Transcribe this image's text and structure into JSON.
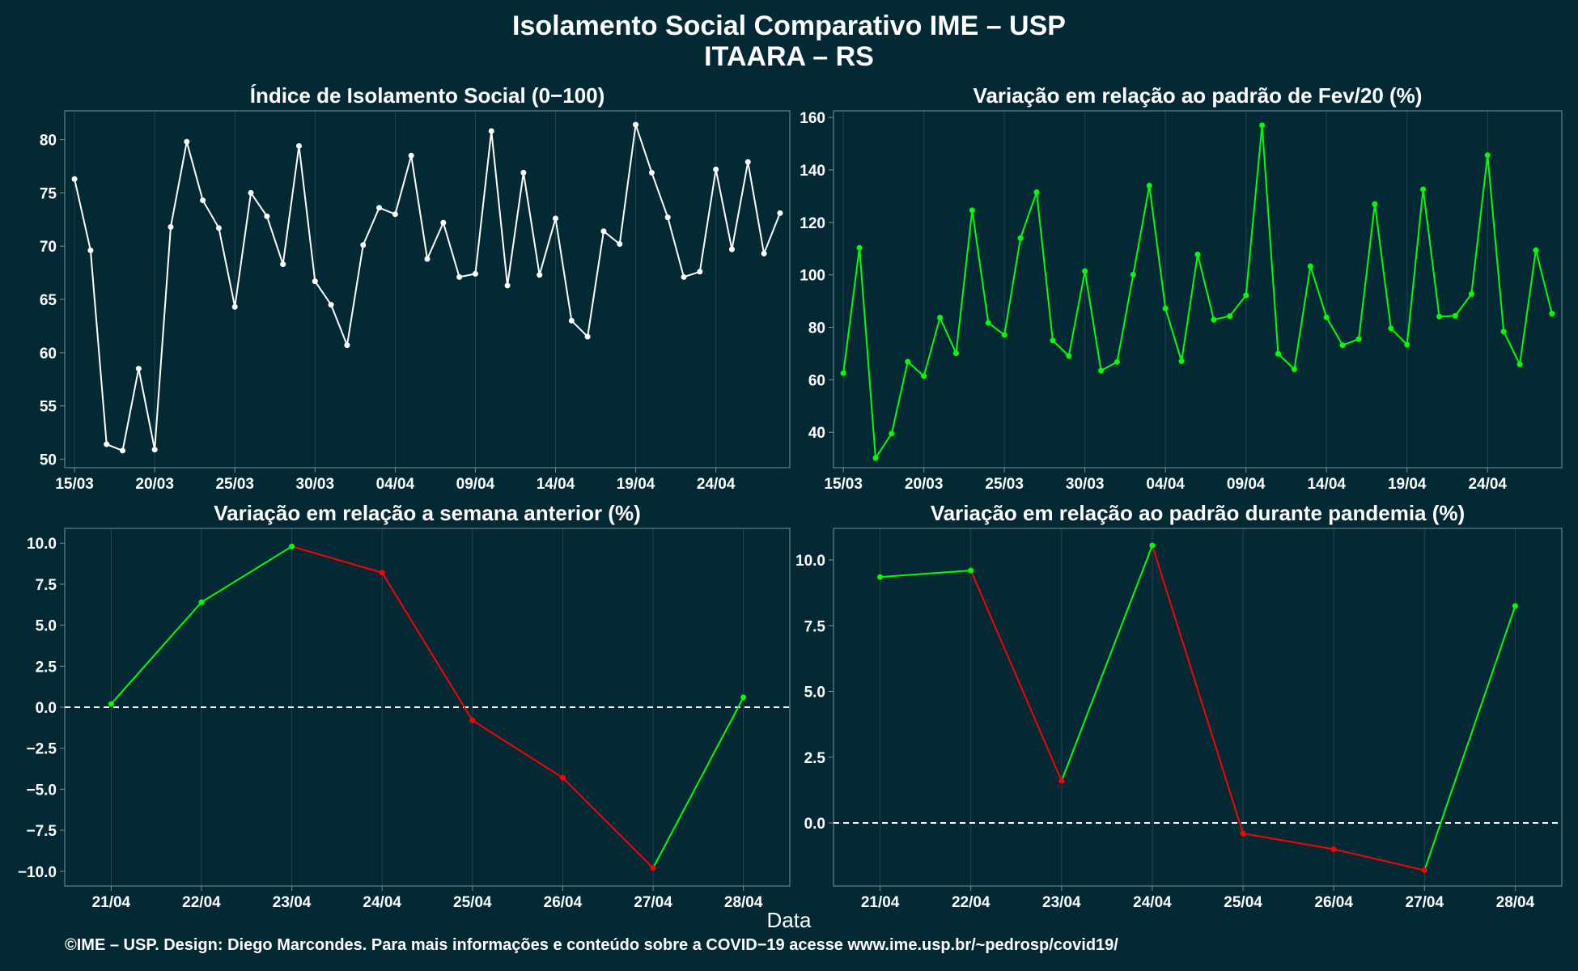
{
  "title": "Isolamento Social Comparativo IME – USP",
  "subtitle": "ITAARA – RS",
  "x_label": "Data",
  "footer": "©IME – USP. Design: Diego Marcondes. Para mais informações e conteúdo sobre a COVID−19 acesse www.ime.usp.br/~pedrosp/covid19/",
  "colors": {
    "background": "#032935",
    "white": "#ffffff",
    "green": "#00ff00",
    "red": "#ff0000",
    "grid": "#1f4752",
    "frame": "#7d8e94"
  },
  "chart_data": [
    {
      "type": "line",
      "title": "Índice de Isolamento Social (0−100)",
      "x": [
        "15/03",
        "16/03",
        "17/03",
        "18/03",
        "19/03",
        "20/03",
        "21/03",
        "22/03",
        "23/03",
        "24/03",
        "25/03",
        "26/03",
        "27/03",
        "28/03",
        "29/03",
        "30/03",
        "31/03",
        "01/04",
        "02/04",
        "03/04",
        "04/04",
        "05/04",
        "06/04",
        "07/04",
        "08/04",
        "09/04",
        "10/04",
        "11/04",
        "12/04",
        "13/04",
        "14/04",
        "15/04",
        "16/04",
        "17/04",
        "18/04",
        "19/04",
        "20/04",
        "21/04",
        "22/04",
        "23/04",
        "24/04",
        "25/04",
        "26/04",
        "27/04",
        "28/04"
      ],
      "x_ticks": [
        "15/03",
        "20/03",
        "25/03",
        "30/03",
        "04/04",
        "09/04",
        "14/04",
        "19/04",
        "24/04"
      ],
      "series": [
        {
          "values": [
            76.3,
            69.6,
            51.4,
            50.8,
            58.5,
            50.9,
            71.8,
            79.8,
            74.3,
            71.7,
            64.3,
            75.0,
            72.8,
            68.3,
            79.4,
            66.7,
            64.5,
            60.7,
            70.1,
            73.6,
            73.0,
            78.5,
            68.8,
            72.2,
            67.1,
            67.4,
            80.8,
            66.3,
            76.9,
            67.3,
            72.6,
            63.0,
            61.5,
            71.4,
            70.2,
            81.4,
            76.9,
            72.7,
            67.1,
            67.6,
            77.2,
            69.7,
            77.9,
            69.3,
            73.1
          ]
        }
      ],
      "ylim": [
        49.2,
        82.7
      ],
      "y_ticks": [
        50,
        55,
        60,
        65,
        70,
        75,
        80
      ],
      "line_color": "#ffffff"
    },
    {
      "type": "line",
      "title": "Variação em relação ao padrão de Fev/20 (%)",
      "x": [
        "15/03",
        "16/03",
        "17/03",
        "18/03",
        "19/03",
        "20/03",
        "21/03",
        "22/03",
        "23/03",
        "24/03",
        "25/03",
        "26/03",
        "27/03",
        "28/03",
        "29/03",
        "30/03",
        "31/03",
        "01/04",
        "02/04",
        "03/04",
        "04/04",
        "05/04",
        "06/04",
        "07/04",
        "08/04",
        "09/04",
        "10/04",
        "11/04",
        "12/04",
        "13/04",
        "14/04",
        "15/04",
        "16/04",
        "17/04",
        "18/04",
        "19/04",
        "20/04",
        "21/04",
        "22/04",
        "23/04",
        "24/04",
        "25/04",
        "26/04",
        "27/04",
        "28/04"
      ],
      "x_ticks": [
        "15/03",
        "20/03",
        "25/03",
        "30/03",
        "04/04",
        "09/04",
        "14/04",
        "19/04",
        "24/04"
      ],
      "series": [
        {
          "values": [
            62.5,
            110.3,
            30.2,
            39.5,
            66.9,
            61.4,
            83.7,
            70.1,
            124.6,
            81.7,
            77.1,
            114.0,
            131.5,
            75.0,
            69.1,
            101.4,
            63.5,
            66.8,
            100.1,
            134.0,
            87.2,
            67.1,
            107.8,
            82.9,
            84.3,
            92.2,
            157.0,
            69.9,
            64.0,
            103.3,
            83.8,
            73.2,
            75.5,
            127.0,
            79.6,
            73.4,
            132.6,
            84.1,
            84.4,
            92.7,
            145.6,
            78.4,
            65.9,
            109.4,
            85.2
          ]
        }
      ],
      "ylim": [
        26.5,
        162.5
      ],
      "y_ticks": [
        40,
        60,
        80,
        100,
        120,
        140,
        160
      ],
      "line_color": "#00ff00"
    },
    {
      "type": "line",
      "title": "Variação em relação a semana anterior (%)",
      "x": [
        "21/04",
        "22/04",
        "23/04",
        "24/04",
        "25/04",
        "26/04",
        "27/04",
        "28/04"
      ],
      "series": [
        {
          "values": [
            0.2,
            6.4,
            9.8,
            8.2,
            -0.8,
            -4.3,
            -9.8,
            0.6
          ]
        }
      ],
      "ylim": [
        -10.9,
        10.9
      ],
      "y_ticks": [
        -10.0,
        -7.5,
        -5.0,
        -2.5,
        0.0,
        2.5,
        5.0,
        7.5,
        10.0
      ],
      "y_tick_labels": [
        "−10.0",
        "−7.5",
        "−5.0",
        "−2.5",
        "0.0",
        "2.5",
        "5.0",
        "7.5",
        "10.0"
      ],
      "reference_line": 0,
      "positive_color": "#00ff00",
      "negative_color": "#ff0000"
    },
    {
      "type": "line",
      "title": "Variação em relação ao padrão durante pandemia (%)",
      "x": [
        "21/04",
        "22/04",
        "23/04",
        "24/04",
        "25/04",
        "26/04",
        "27/04",
        "28/04"
      ],
      "series": [
        {
          "values": [
            9.35,
            9.6,
            1.6,
            10.55,
            -0.4,
            -1.0,
            -1.8,
            8.25
          ]
        }
      ],
      "ylim": [
        -2.4,
        11.2
      ],
      "y_ticks": [
        0.0,
        2.5,
        5.0,
        7.5,
        10.0
      ],
      "y_tick_labels": [
        "0.0",
        "2.5",
        "5.0",
        "7.5",
        "10.0"
      ],
      "reference_line": 0,
      "positive_color": "#00ff00",
      "negative_color": "#ff0000"
    }
  ]
}
